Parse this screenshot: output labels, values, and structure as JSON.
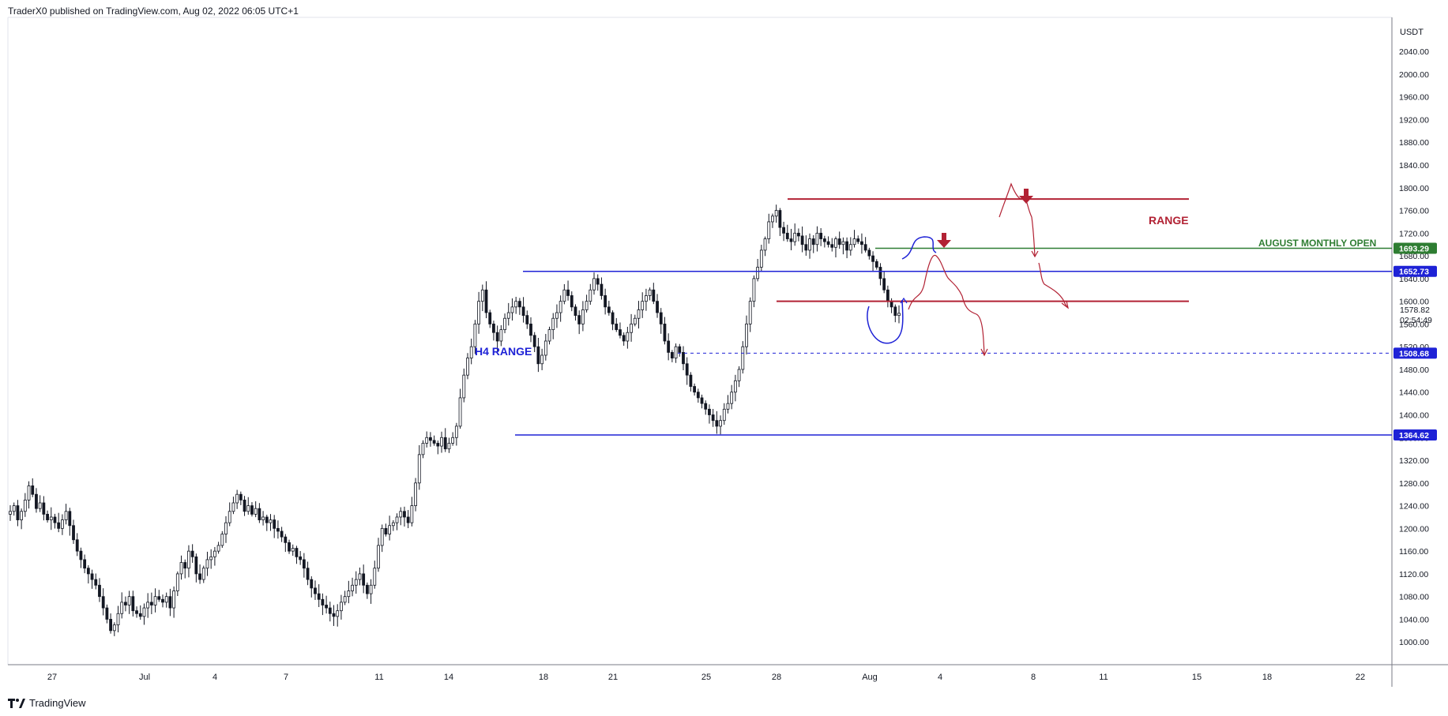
{
  "header": {
    "text": "TraderX0 published on TradingView.com, Aug 02, 2022 06:05 UTC+1"
  },
  "footer": {
    "brand": "TradingView"
  },
  "colors": {
    "candle": "#131722",
    "blue": "#1e22d6",
    "red": "#b22234",
    "green": "#2e7d32",
    "grid_border": "#787b86"
  },
  "chart_data": {
    "type": "candlestick",
    "currency_label": "USDT",
    "ylim": [
      970,
      2090
    ],
    "y_ticks": [
      1000,
      1040,
      1080,
      1120,
      1160,
      1200,
      1240,
      1280,
      1320,
      1360,
      1400,
      1440,
      1480,
      1520,
      1560,
      1600,
      1640,
      1680,
      1720,
      1760,
      1800,
      1840,
      1880,
      1920,
      1960,
      2000,
      2040
    ],
    "x_ticks": [
      "27",
      "Jul",
      "4",
      "7",
      "11",
      "14",
      "18",
      "21",
      "25",
      "28",
      "Aug",
      "4",
      "8",
      "11",
      "15",
      "18",
      "22"
    ],
    "last_price": {
      "value": "1578.82",
      "countdown": "02:54:49"
    },
    "price_badges": [
      {
        "value": "1693.29",
        "color": "#2e7d32"
      },
      {
        "value": "1652.73",
        "color": "#1e22d6"
      },
      {
        "value": "1508.68",
        "color": "#1e22d6"
      },
      {
        "value": "1364.62",
        "color": "#1e22d6"
      }
    ],
    "annotations": [
      {
        "text": "RANGE",
        "color": "#b22234"
      },
      {
        "text": "AUGUST MONTHLY OPEN",
        "color": "#2e7d32"
      },
      {
        "text": "H4 RANGE",
        "color": "#1e22d6"
      }
    ],
    "levels": [
      {
        "name": "range-top",
        "price": 1780,
        "color": "#b22234"
      },
      {
        "name": "range-bottom",
        "price": 1600,
        "color": "#b22234"
      },
      {
        "name": "august-monthly-open",
        "price": 1693.29,
        "color": "#2e7d32"
      },
      {
        "name": "h4-range-top",
        "price": 1652.73,
        "color": "#1e22d6"
      },
      {
        "name": "h4-range-mid",
        "price": 1508.68,
        "color": "#1e22d6"
      },
      {
        "name": "h4-range-bottom",
        "price": 1364.62,
        "color": "#1e22d6"
      }
    ],
    "price_path": [
      [
        1230,
        1240,
        1215,
        1230,
        1250,
        1275,
        1260,
        1235,
        1245,
        1225,
        1215,
        1220,
        1210,
        1200,
        1215,
        1230,
        1205,
        1180,
        1160,
        1145,
        1130,
        1120,
        1110,
        1100,
        1080,
        1060,
        1040,
        1020,
        1030,
        1050
      ],
      [
        1070,
        1065,
        1080,
        1055,
        1050,
        1045,
        1060,
        1070,
        1065,
        1080,
        1075,
        1070,
        1080,
        1060,
        1090,
        1120,
        1140,
        1130,
        1160,
        1150,
        1120,
        1110,
        1130,
        1145,
        1150,
        1160,
        1170,
        1190,
        1210,
        1230
      ],
      [
        1245,
        1260,
        1250,
        1230,
        1240,
        1225,
        1235,
        1215,
        1220,
        1210,
        1215,
        1200,
        1195,
        1185,
        1175,
        1160,
        1165,
        1150,
        1145,
        1130,
        1110,
        1095,
        1085,
        1075,
        1065,
        1060,
        1050,
        1045,
        1055,
        1070
      ],
      [
        1080,
        1090,
        1100,
        1110,
        1120,
        1100,
        1085,
        1100,
        1130,
        1170,
        1200,
        1190,
        1205,
        1210,
        1220,
        1230,
        1220,
        1210,
        1240,
        1280,
        1330,
        1350,
        1360,
        1355,
        1350,
        1345,
        1360,
        1340,
        1350,
        1360
      ],
      [
        1380,
        1430,
        1470,
        1500,
        1520,
        1560,
        1600,
        1620,
        1580,
        1560,
        1545,
        1530,
        1550,
        1570,
        1580,
        1590,
        1600,
        1590,
        1575,
        1560,
        1540,
        1520,
        1490,
        1505,
        1530,
        1550,
        1570,
        1580,
        1600,
        1620
      ],
      [
        1610,
        1590,
        1575,
        1560,
        1585,
        1600,
        1620,
        1640,
        1630,
        1610,
        1590,
        1580,
        1560,
        1550,
        1540,
        1530,
        1545,
        1560,
        1570,
        1585,
        1600,
        1610,
        1620,
        1600,
        1580,
        1560,
        1530,
        1510,
        1500,
        1520
      ],
      [
        1510,
        1490,
        1470,
        1450,
        1440,
        1430,
        1420,
        1410,
        1400,
        1390,
        1380,
        1390,
        1410,
        1420,
        1440,
        1460,
        1480,
        1520,
        1560,
        1600,
        1640,
        1660,
        1690,
        1710,
        1740,
        1750,
        1760,
        1730,
        1720,
        1710
      ],
      [
        1705,
        1720,
        1715,
        1700,
        1690,
        1710,
        1700,
        1720,
        1710,
        1705,
        1700,
        1695,
        1710,
        1700,
        1705,
        1690,
        1700,
        1710,
        1705,
        1700,
        1690,
        1680,
        1670,
        1660,
        1640,
        1620,
        1600,
        1590,
        1575,
        1578.82
      ]
    ]
  }
}
